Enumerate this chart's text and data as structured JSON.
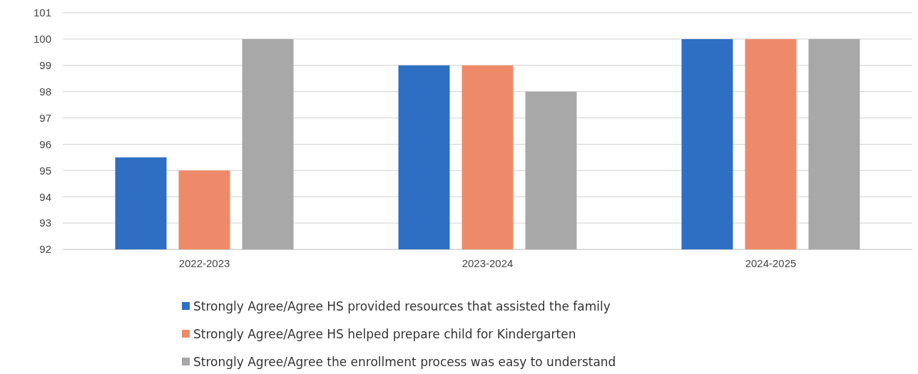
{
  "chart_data": {
    "type": "bar",
    "categories": [
      "2022-2023",
      "2023-2024",
      "2024-2025"
    ],
    "series": [
      {
        "name": "Strongly Agree/Agree HS provided resources that assisted the family",
        "color": "#2e6fc4",
        "values": [
          95.5,
          99,
          100
        ]
      },
      {
        "name": "Strongly Agree/Agree HS helped prepare child for Kindergarten",
        "color": "#ee8a6a",
        "values": [
          95,
          99,
          100
        ]
      },
      {
        "name": "Strongly Agree/Agree the enrollment process was easy to understand",
        "color": "#a8a8a8",
        "values": [
          100,
          98,
          100
        ]
      }
    ],
    "ylim": [
      92,
      101
    ],
    "yticks": [
      92,
      93,
      94,
      95,
      96,
      97,
      98,
      99,
      100,
      101
    ],
    "grid": "y",
    "legend": "bottom"
  }
}
